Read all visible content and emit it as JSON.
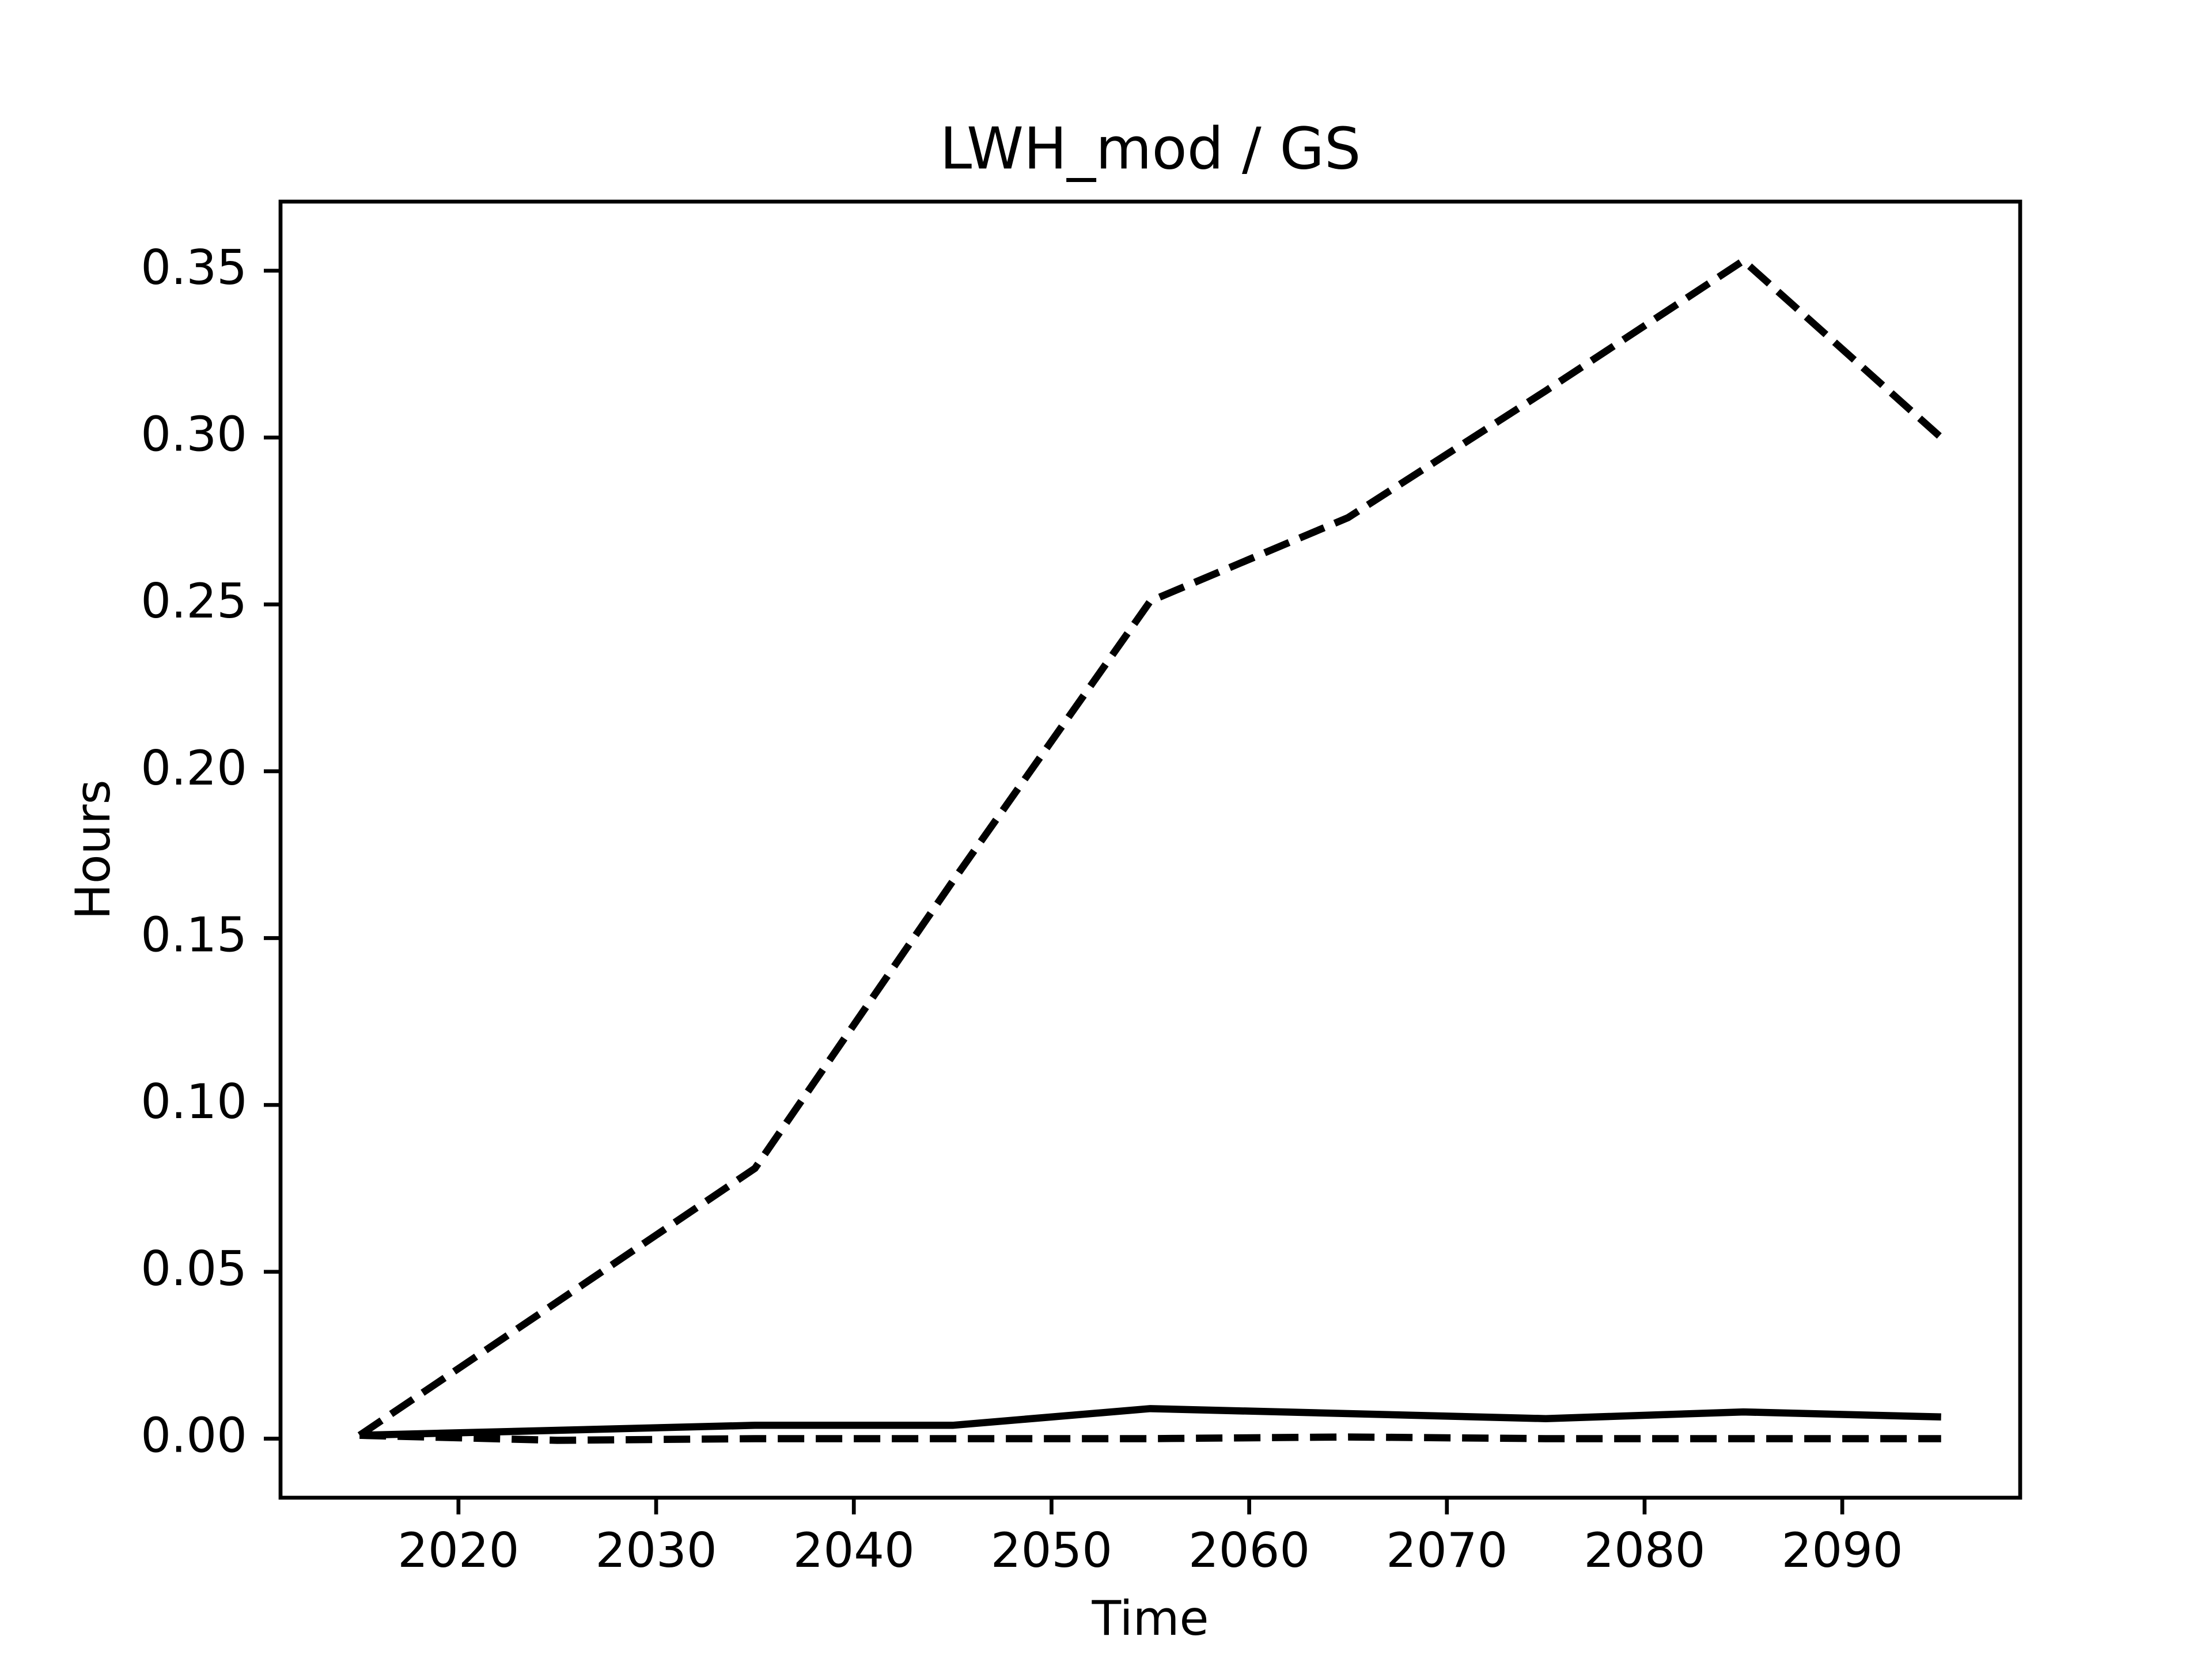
{
  "chart_data": {
    "type": "line",
    "title": "LWH_mod / GS",
    "x_label": "Time",
    "y_label": "Hours",
    "x": [
      2015,
      2025,
      2035,
      2045,
      2055,
      2065,
      2075,
      2085,
      2095
    ],
    "series": [
      {
        "color": "#000000",
        "linestyle": "dashed",
        "values": [
          0.001,
          0.041,
          0.081,
          0.167,
          0.251,
          0.276,
          0.314,
          0.353,
          0.3
        ]
      },
      {
        "color": "#000000",
        "linestyle": "solid",
        "values": [
          0.001,
          0.0025,
          0.004,
          0.004,
          0.009,
          0.0075,
          0.006,
          0.008,
          0.0065
        ]
      },
      {
        "color": "#000000",
        "linestyle": "dashed",
        "values": [
          0.001,
          -0.0005,
          0,
          0,
          0,
          0.0005,
          0,
          0,
          0
        ]
      }
    ],
    "xlim": [
      2011,
      2099
    ],
    "xticks": [
      2020,
      2030,
      2040,
      2050,
      2060,
      2070,
      2080,
      2090
    ],
    "ylim": [
      -0.0177,
      0.3707
    ],
    "yticks": [
      {
        "value": 0,
        "label": "0.00"
      },
      0.05,
      {
        "value": 0.1,
        "label": "0.10"
      },
      0.15,
      {
        "value": 0.2,
        "label": "0.20"
      },
      0.25,
      {
        "value": 0.3,
        "label": "0.30"
      },
      0.35
    ],
    "grid": false
  }
}
